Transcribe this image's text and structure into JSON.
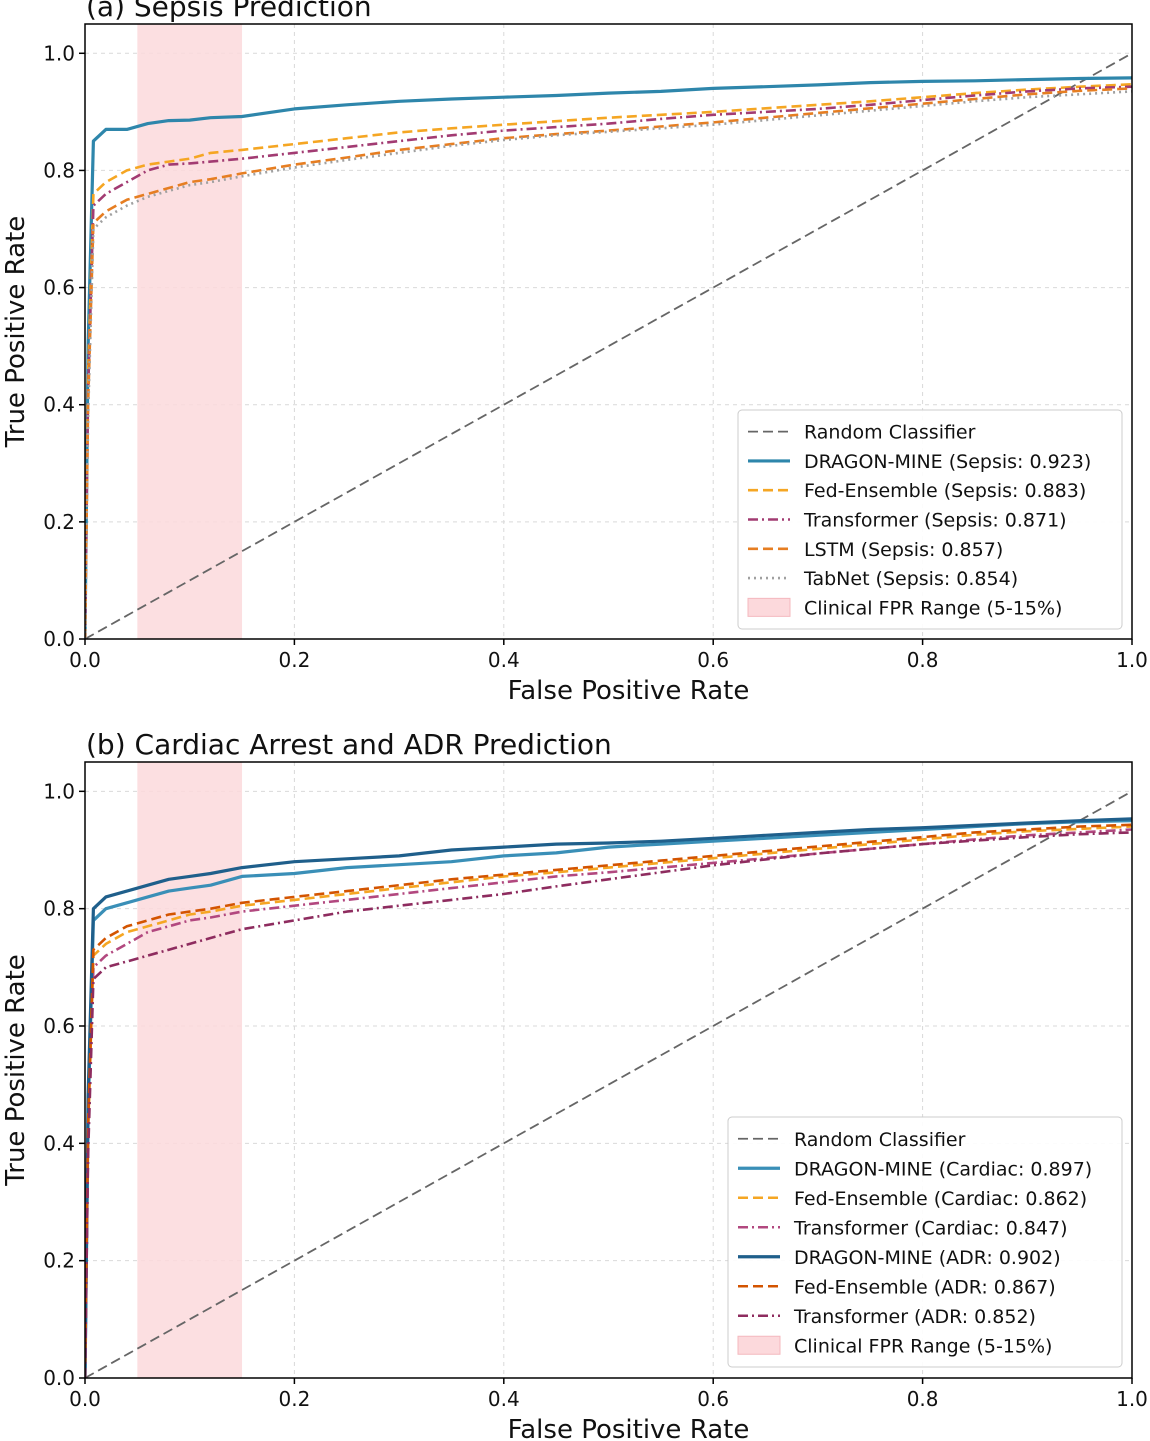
{
  "chart_data": [
    {
      "type": "line",
      "title": "(a) Sepsis Prediction",
      "xlabel": "False Positive Rate",
      "ylabel": "True Positive Rate",
      "xlim": [
        0,
        1.0
      ],
      "ylim": [
        0,
        1.05
      ],
      "xticks": [
        "0.0",
        "0.2",
        "0.4",
        "0.6",
        "0.8",
        "1.0"
      ],
      "yticks": [
        "0.0",
        "0.2",
        "0.4",
        "0.6",
        "0.8",
        "1.0"
      ],
      "grid": true,
      "legend_position": "lower-right",
      "shaded_region": {
        "name": "Clinical FPR Range (5-15%)",
        "x": [
          0.05,
          0.15
        ],
        "color": "#fcd9dc"
      },
      "series": [
        {
          "name": "Random Classifier",
          "color": "#666666",
          "dash": "dashed",
          "x": [
            0,
            1
          ],
          "y": [
            0,
            1
          ]
        },
        {
          "name": "DRAGON-MINE (Sepsis: 0.923)",
          "color": "#2e86ab",
          "dash": "solid",
          "x": [
            0,
            0.003,
            0.008,
            0.02,
            0.04,
            0.06,
            0.08,
            0.1,
            0.12,
            0.15,
            0.18,
            0.2,
            0.25,
            0.3,
            0.35,
            0.4,
            0.45,
            0.5,
            0.55,
            0.6,
            0.65,
            0.7,
            0.75,
            0.8,
            0.85,
            0.9,
            0.95,
            1.0
          ],
          "y": [
            0,
            0.5,
            0.85,
            0.87,
            0.87,
            0.88,
            0.885,
            0.886,
            0.89,
            0.892,
            0.9,
            0.905,
            0.912,
            0.918,
            0.922,
            0.925,
            0.928,
            0.932,
            0.935,
            0.94,
            0.943,
            0.946,
            0.95,
            0.952,
            0.953,
            0.955,
            0.957,
            0.958
          ]
        },
        {
          "name": "Fed-Ensemble (Sepsis: 0.883)",
          "color": "#f5a623",
          "dash": "dashed",
          "x": [
            0,
            0.003,
            0.008,
            0.02,
            0.04,
            0.06,
            0.08,
            0.1,
            0.12,
            0.15,
            0.2,
            0.25,
            0.3,
            0.35,
            0.4,
            0.45,
            0.5,
            0.55,
            0.6,
            0.65,
            0.7,
            0.75,
            0.8,
            0.85,
            0.9,
            0.95,
            1.0
          ],
          "y": [
            0,
            0.45,
            0.76,
            0.78,
            0.8,
            0.81,
            0.815,
            0.82,
            0.83,
            0.835,
            0.845,
            0.855,
            0.865,
            0.872,
            0.878,
            0.884,
            0.89,
            0.895,
            0.9,
            0.906,
            0.912,
            0.918,
            0.925,
            0.932,
            0.938,
            0.943,
            0.947
          ]
        },
        {
          "name": "Transformer (Sepsis: 0.871)",
          "color": "#a23b72",
          "dash": "dashdot",
          "x": [
            0,
            0.003,
            0.008,
            0.02,
            0.04,
            0.06,
            0.08,
            0.1,
            0.12,
            0.15,
            0.2,
            0.25,
            0.3,
            0.35,
            0.4,
            0.45,
            0.5,
            0.55,
            0.6,
            0.65,
            0.7,
            0.75,
            0.8,
            0.85,
            0.9,
            0.95,
            1.0
          ],
          "y": [
            0,
            0.42,
            0.74,
            0.76,
            0.78,
            0.8,
            0.81,
            0.812,
            0.815,
            0.82,
            0.83,
            0.84,
            0.85,
            0.86,
            0.868,
            0.874,
            0.88,
            0.888,
            0.895,
            0.9,
            0.905,
            0.912,
            0.92,
            0.928,
            0.935,
            0.94,
            0.943
          ]
        },
        {
          "name": "LSTM (Sepsis: 0.857)",
          "color": "#e67e22",
          "dash": "dashed",
          "x": [
            0,
            0.003,
            0.008,
            0.02,
            0.04,
            0.06,
            0.08,
            0.1,
            0.12,
            0.15,
            0.2,
            0.25,
            0.3,
            0.35,
            0.4,
            0.45,
            0.5,
            0.55,
            0.6,
            0.65,
            0.7,
            0.75,
            0.8,
            0.85,
            0.9,
            0.95,
            1.0
          ],
          "y": [
            0,
            0.4,
            0.71,
            0.73,
            0.75,
            0.76,
            0.77,
            0.78,
            0.785,
            0.795,
            0.81,
            0.822,
            0.835,
            0.845,
            0.855,
            0.862,
            0.868,
            0.875,
            0.882,
            0.89,
            0.898,
            0.906,
            0.914,
            0.922,
            0.93,
            0.936,
            0.94
          ]
        },
        {
          "name": "TabNet (Sepsis: 0.854)",
          "color": "#a0a0a0",
          "dash": "dotted",
          "x": [
            0,
            0.003,
            0.008,
            0.02,
            0.04,
            0.06,
            0.08,
            0.1,
            0.12,
            0.15,
            0.2,
            0.25,
            0.3,
            0.35,
            0.4,
            0.45,
            0.5,
            0.55,
            0.6,
            0.65,
            0.7,
            0.75,
            0.8,
            0.85,
            0.9,
            0.95,
            1.0
          ],
          "y": [
            0,
            0.38,
            0.7,
            0.72,
            0.74,
            0.755,
            0.765,
            0.775,
            0.78,
            0.79,
            0.805,
            0.818,
            0.83,
            0.842,
            0.852,
            0.86,
            0.866,
            0.872,
            0.878,
            0.886,
            0.894,
            0.902,
            0.91,
            0.918,
            0.925,
            0.93,
            0.935
          ]
        }
      ]
    },
    {
      "type": "line",
      "title": "(b) Cardiac Arrest and ADR Prediction",
      "xlabel": "False Positive Rate",
      "ylabel": "True Positive Rate",
      "xlim": [
        0,
        1.0
      ],
      "ylim": [
        0,
        1.05
      ],
      "xticks": [
        "0.0",
        "0.2",
        "0.4",
        "0.6",
        "0.8",
        "1.0"
      ],
      "yticks": [
        "0.0",
        "0.2",
        "0.4",
        "0.6",
        "0.8",
        "1.0"
      ],
      "grid": true,
      "legend_position": "lower-right",
      "shaded_region": {
        "name": "Clinical FPR Range (5-15%)",
        "x": [
          0.05,
          0.15
        ],
        "color": "#fcd9dc"
      },
      "series": [
        {
          "name": "Random Classifier",
          "color": "#666666",
          "dash": "dashed",
          "x": [
            0,
            1
          ],
          "y": [
            0,
            1
          ]
        },
        {
          "name": "DRAGON-MINE (Cardiac: 0.897)",
          "color": "#3a8fb7",
          "dash": "solid",
          "x": [
            0,
            0.003,
            0.008,
            0.02,
            0.04,
            0.06,
            0.08,
            0.1,
            0.12,
            0.15,
            0.2,
            0.25,
            0.3,
            0.35,
            0.4,
            0.45,
            0.5,
            0.55,
            0.6,
            0.65,
            0.7,
            0.75,
            0.8,
            0.85,
            0.9,
            0.95,
            1.0
          ],
          "y": [
            0,
            0.45,
            0.78,
            0.8,
            0.81,
            0.82,
            0.83,
            0.835,
            0.84,
            0.855,
            0.86,
            0.87,
            0.875,
            0.88,
            0.89,
            0.895,
            0.905,
            0.91,
            0.915,
            0.92,
            0.925,
            0.93,
            0.935,
            0.94,
            0.945,
            0.948,
            0.95
          ]
        },
        {
          "name": "Fed-Ensemble (Cardiac: 0.862)",
          "color": "#f5a623",
          "dash": "dashed",
          "x": [
            0,
            0.003,
            0.008,
            0.02,
            0.04,
            0.06,
            0.08,
            0.1,
            0.12,
            0.15,
            0.2,
            0.25,
            0.3,
            0.35,
            0.4,
            0.45,
            0.5,
            0.55,
            0.6,
            0.65,
            0.7,
            0.75,
            0.8,
            0.85,
            0.9,
            0.95,
            1.0
          ],
          "y": [
            0,
            0.42,
            0.72,
            0.74,
            0.76,
            0.77,
            0.78,
            0.79,
            0.795,
            0.805,
            0.815,
            0.825,
            0.835,
            0.845,
            0.855,
            0.862,
            0.87,
            0.878,
            0.886,
            0.894,
            0.902,
            0.91,
            0.918,
            0.926,
            0.932,
            0.936,
            0.94
          ]
        },
        {
          "name": "Transformer (Cardiac: 0.847)",
          "color": "#b2487f",
          "dash": "dashdot",
          "x": [
            0,
            0.003,
            0.008,
            0.02,
            0.04,
            0.06,
            0.08,
            0.1,
            0.12,
            0.15,
            0.2,
            0.25,
            0.3,
            0.35,
            0.4,
            0.45,
            0.5,
            0.55,
            0.6,
            0.65,
            0.7,
            0.75,
            0.8,
            0.85,
            0.9,
            0.95,
            1.0
          ],
          "y": [
            0,
            0.4,
            0.7,
            0.72,
            0.74,
            0.76,
            0.77,
            0.78,
            0.785,
            0.795,
            0.805,
            0.815,
            0.825,
            0.835,
            0.845,
            0.855,
            0.862,
            0.87,
            0.878,
            0.886,
            0.894,
            0.902,
            0.91,
            0.918,
            0.925,
            0.93,
            0.935
          ]
        },
        {
          "name": "DRAGON-MINE (ADR: 0.902)",
          "color": "#1f5f8b",
          "dash": "solid",
          "x": [
            0,
            0.003,
            0.008,
            0.02,
            0.04,
            0.06,
            0.08,
            0.1,
            0.12,
            0.15,
            0.2,
            0.25,
            0.3,
            0.35,
            0.4,
            0.45,
            0.5,
            0.55,
            0.6,
            0.65,
            0.7,
            0.75,
            0.8,
            0.85,
            0.9,
            0.95,
            1.0
          ],
          "y": [
            0,
            0.48,
            0.8,
            0.82,
            0.83,
            0.84,
            0.85,
            0.855,
            0.86,
            0.87,
            0.88,
            0.885,
            0.89,
            0.9,
            0.905,
            0.91,
            0.912,
            0.915,
            0.92,
            0.925,
            0.93,
            0.935,
            0.938,
            0.942,
            0.946,
            0.95,
            0.953
          ]
        },
        {
          "name": "Fed-Ensemble (ADR: 0.867)",
          "color": "#d35400",
          "dash": "dashed",
          "x": [
            0,
            0.003,
            0.008,
            0.02,
            0.04,
            0.06,
            0.08,
            0.1,
            0.12,
            0.15,
            0.2,
            0.25,
            0.3,
            0.35,
            0.4,
            0.45,
            0.5,
            0.55,
            0.6,
            0.65,
            0.7,
            0.75,
            0.8,
            0.85,
            0.9,
            0.95,
            1.0
          ],
          "y": [
            0,
            0.43,
            0.73,
            0.75,
            0.77,
            0.78,
            0.79,
            0.795,
            0.8,
            0.81,
            0.82,
            0.83,
            0.84,
            0.85,
            0.858,
            0.866,
            0.874,
            0.882,
            0.89,
            0.898,
            0.906,
            0.914,
            0.922,
            0.93,
            0.935,
            0.94,
            0.943
          ]
        },
        {
          "name": "Transformer (ADR: 0.852)",
          "color": "#8e2c5f",
          "dash": "dashdot",
          "x": [
            0,
            0.003,
            0.008,
            0.02,
            0.04,
            0.06,
            0.08,
            0.1,
            0.12,
            0.15,
            0.2,
            0.25,
            0.3,
            0.35,
            0.4,
            0.45,
            0.5,
            0.55,
            0.6,
            0.65,
            0.7,
            0.75,
            0.8,
            0.85,
            0.9,
            0.95,
            1.0
          ],
          "y": [
            0,
            0.38,
            0.68,
            0.7,
            0.71,
            0.72,
            0.73,
            0.74,
            0.75,
            0.765,
            0.78,
            0.795,
            0.805,
            0.815,
            0.825,
            0.838,
            0.85,
            0.862,
            0.874,
            0.884,
            0.894,
            0.902,
            0.91,
            0.916,
            0.922,
            0.927,
            0.93
          ]
        }
      ]
    }
  ]
}
